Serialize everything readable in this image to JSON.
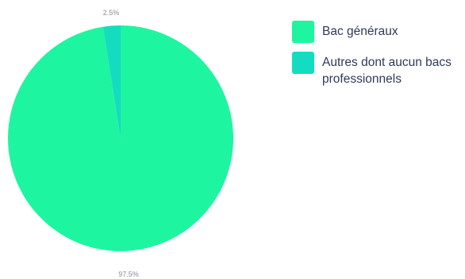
{
  "chart_data": {
    "type": "pie",
    "slices": [
      {
        "label": "Bac généraux",
        "value": 97.5,
        "value_label": "97.5%",
        "color": "#1ef5a0"
      },
      {
        "label": "Autres dont aucun bacs professionnels",
        "value": 2.5,
        "value_label": "2.5%",
        "color": "#14dcc0"
      }
    ],
    "start_angle": "12 o'clock",
    "direction": "counter-clockwise",
    "legend_position": "right"
  }
}
